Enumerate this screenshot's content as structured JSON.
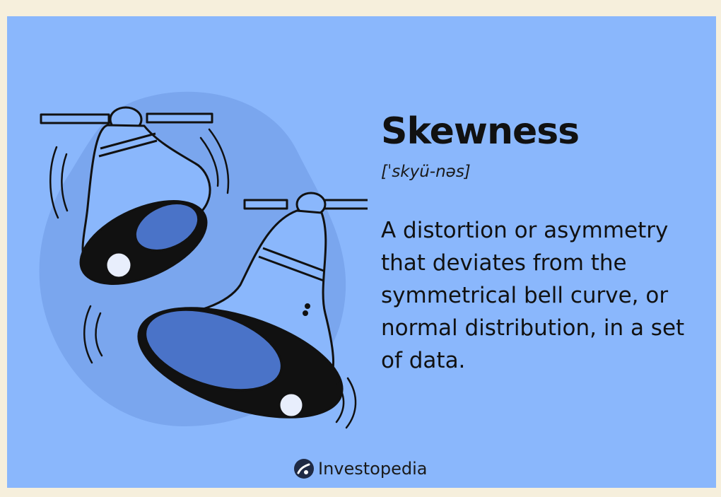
{
  "title": "Skewness",
  "pronunciation": "[ˈskyü-nəs]",
  "definition": "A distortion or asymmetry that deviates from the symmetrical bell curve, or normal distribution, in a set of data.",
  "brand": {
    "name": "Investopedia",
    "icon": "investopedia-logo"
  },
  "illustration": {
    "icon": "ringing-bells-icon"
  },
  "colors": {
    "page": "#f6efdc",
    "card": "#8ab7fc",
    "blob": "#7aa6ee",
    "ink": "#111111",
    "bell_shadow": "#4a73c8"
  }
}
